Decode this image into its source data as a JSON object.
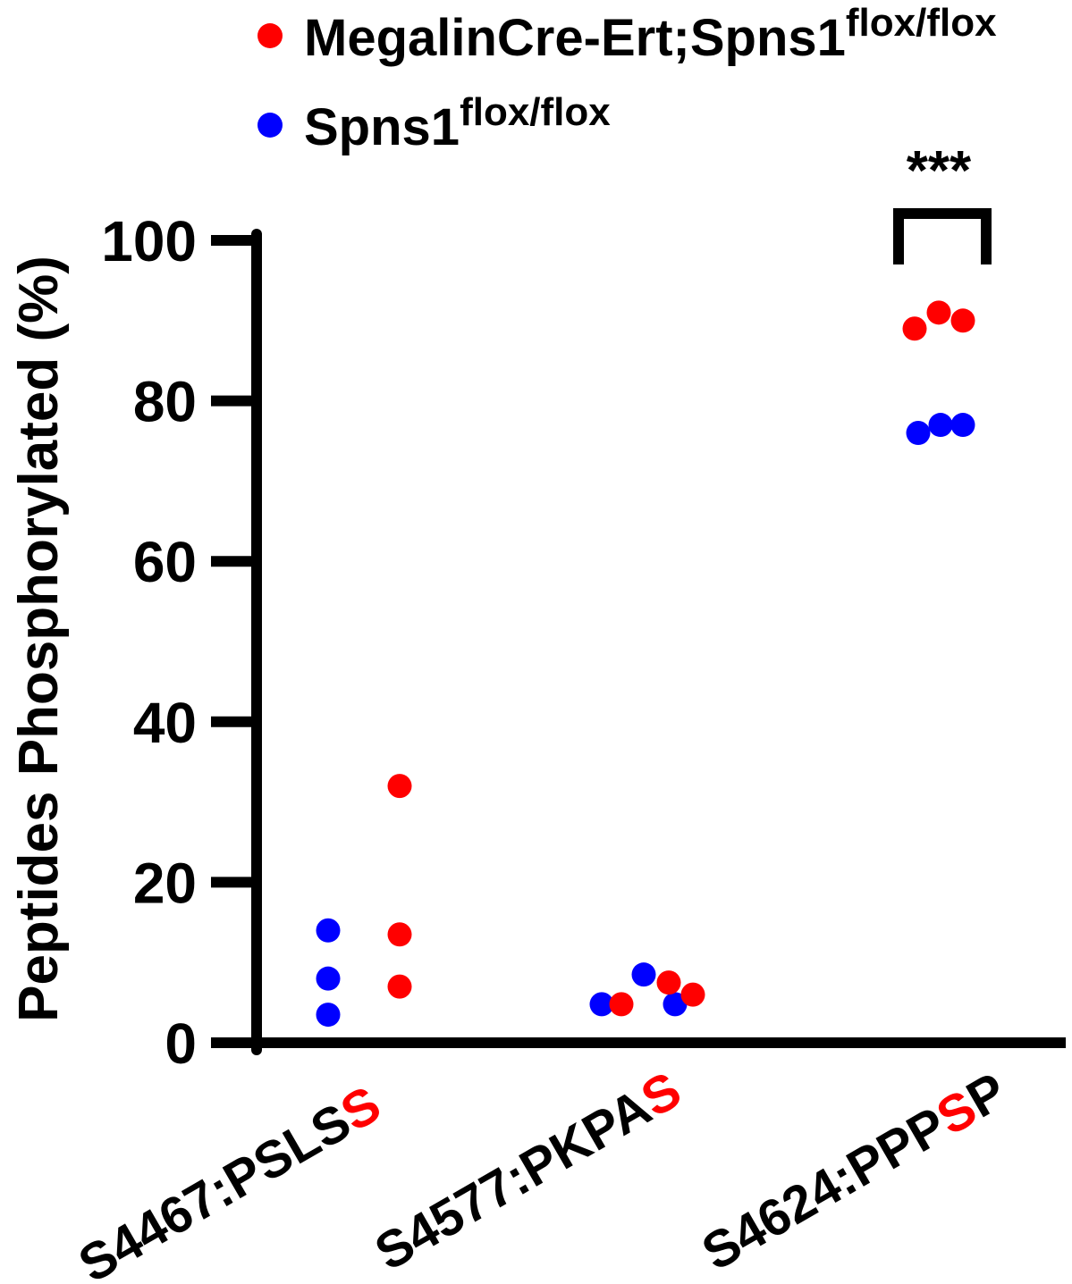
{
  "chart_data": {
    "type": "scatter",
    "ylabel": "Peptides Phosphorylated (%)",
    "ylim": [
      0,
      100
    ],
    "yticks": [
      "0",
      "20",
      "40",
      "60",
      "80",
      "100"
    ],
    "categories": [
      {
        "prefix": "S4467:PSLS",
        "highlight": "S",
        "suffix": ""
      },
      {
        "prefix": "S4577:PKPA",
        "highlight": "S",
        "suffix": ""
      },
      {
        "prefix": "S4624:PPP",
        "highlight": "S",
        "suffix": "P"
      }
    ],
    "series": [
      {
        "name": "Spns1",
        "name_superscript": "flox/flox",
        "color": "#0000ff",
        "values": [
          [
            14,
            8,
            3.5
          ],
          [
            8.5,
            4.8,
            4.8
          ],
          [
            76,
            77,
            77
          ]
        ]
      },
      {
        "name": "MegalinCre-Ert;Spns1",
        "name_superscript": "flox/flox",
        "color": "#ff0000",
        "values": [
          [
            32,
            13.5,
            7
          ],
          [
            4.8,
            7.5,
            6
          ],
          [
            89,
            91,
            90
          ]
        ]
      }
    ],
    "highlight_color": "#ff0000",
    "legend_position": "top",
    "grid": false,
    "significance": [
      {
        "category_index": 2,
        "label": "***"
      }
    ]
  }
}
